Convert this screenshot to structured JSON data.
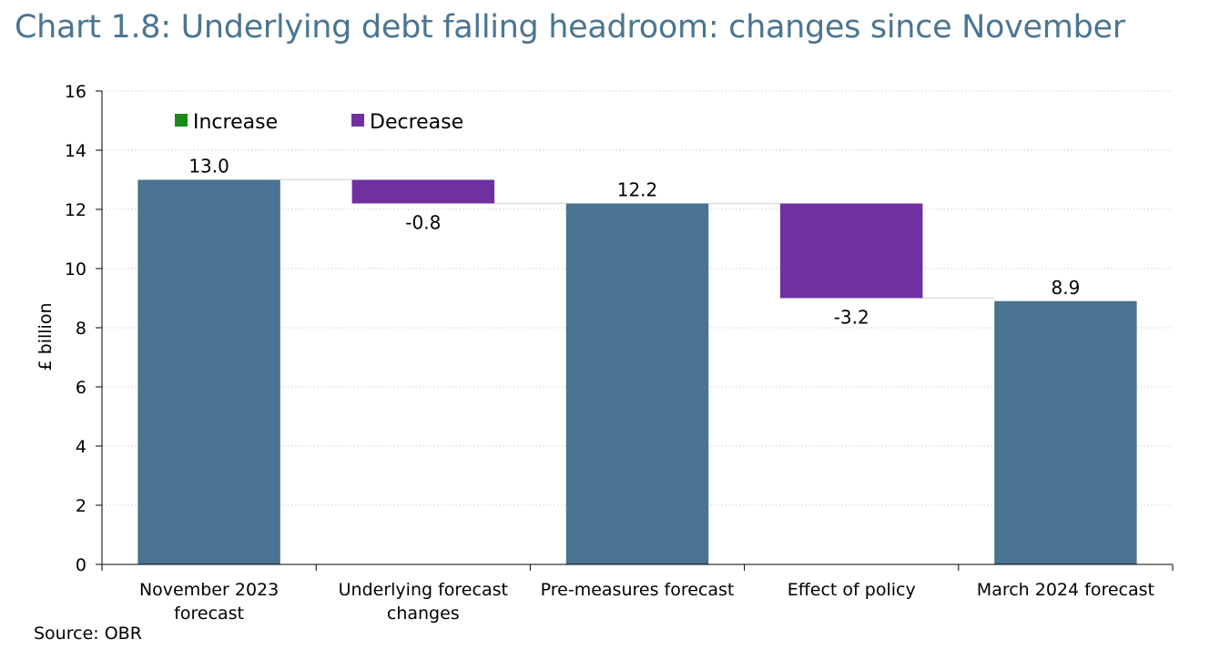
{
  "title": "Chart 1.8: Underlying debt falling headroom: changes since November",
  "source": "Source: OBR",
  "chart_data": {
    "type": "bar",
    "subtype": "waterfall",
    "categories": [
      [
        "November 2023",
        "forecast"
      ],
      [
        "Underlying forecast",
        "changes"
      ],
      [
        "Pre-measures forecast"
      ],
      [
        "Effect of policy"
      ],
      [
        "March 2024 forecast"
      ]
    ],
    "values": [
      13.0,
      -0.8,
      12.2,
      -3.2,
      8.9
    ],
    "bar_kind": [
      "total",
      "change",
      "total",
      "change",
      "total"
    ],
    "data_labels": [
      "13.0",
      "-0.8",
      "12.2",
      "-3.2",
      "8.9"
    ],
    "ylabel": "£ billion",
    "xlabel": "",
    "ylim": [
      0,
      16
    ],
    "yticks": [
      0,
      2,
      4,
      6,
      8,
      10,
      12,
      14,
      16
    ],
    "grid": true,
    "legend": {
      "placement": "top-left",
      "entries": [
        {
          "name": "Increase",
          "color": "#1a8a1a"
        },
        {
          "name": "Decrease",
          "color": "#7030a0"
        }
      ]
    },
    "colors": {
      "total": "#4a7291",
      "increase": "#1a8a1a",
      "decrease": "#7030a0"
    }
  }
}
